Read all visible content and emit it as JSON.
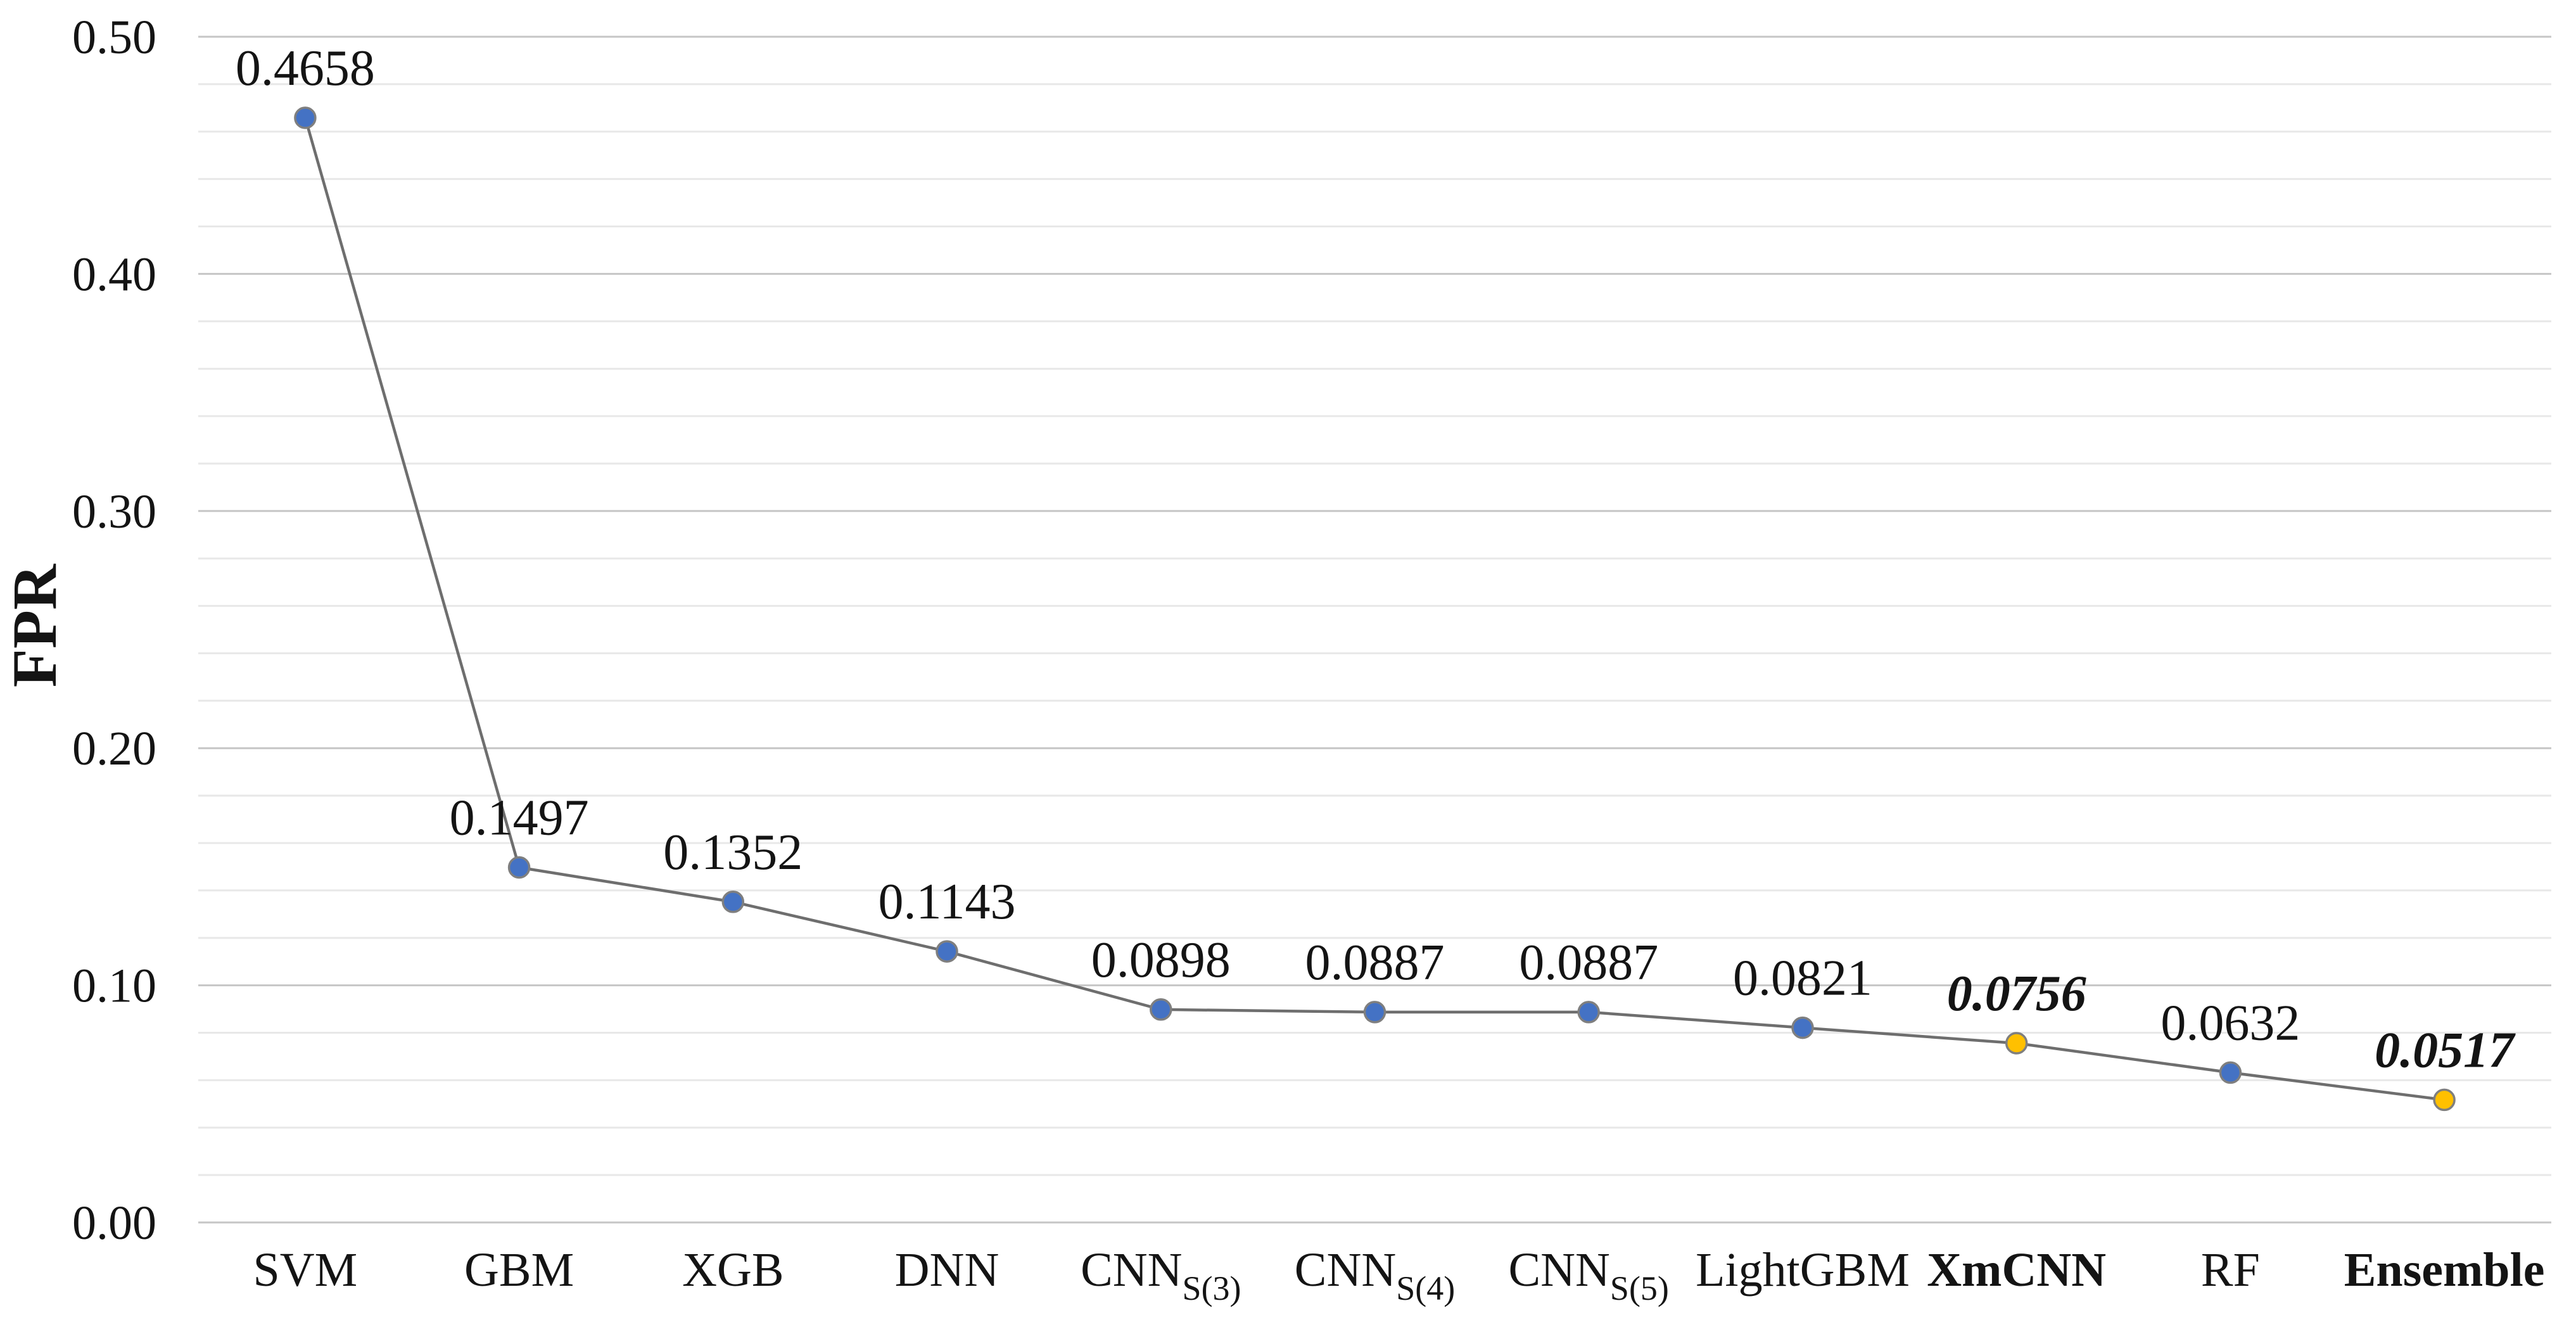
{
  "chart_data": {
    "type": "line",
    "title": "",
    "ylabel": "FPR",
    "xlabel": "",
    "legend_position": "none",
    "grid": true,
    "ylim": [
      0,
      0.5
    ],
    "ytick_step": 0.1,
    "minor_gridline_step": 0.02,
    "yticks": [
      {
        "value": 0.5,
        "label": "0.50"
      },
      {
        "value": 0.4,
        "label": "0.40"
      },
      {
        "value": 0.3,
        "label": "0.30"
      },
      {
        "value": 0.2,
        "label": "0.20"
      },
      {
        "value": 0.1,
        "label": "0.10"
      },
      {
        "value": 0.0,
        "label": "0.00"
      }
    ],
    "categories": [
      {
        "label": "SVM",
        "sub": "",
        "bold": false
      },
      {
        "label": "GBM",
        "sub": "",
        "bold": false
      },
      {
        "label": "XGB",
        "sub": "",
        "bold": false
      },
      {
        "label": "DNN",
        "sub": "",
        "bold": false
      },
      {
        "label": "CNN",
        "sub": "S(3)",
        "bold": false
      },
      {
        "label": "CNN",
        "sub": "S(4)",
        "bold": false
      },
      {
        "label": "CNN",
        "sub": "S(5)",
        "bold": false
      },
      {
        "label": "LightGBM",
        "sub": "",
        "bold": false
      },
      {
        "label": "XmCNN",
        "sub": "",
        "bold": true
      },
      {
        "label": "RF",
        "sub": "",
        "bold": false
      },
      {
        "label": "Ensemble",
        "sub": "",
        "bold": true
      }
    ],
    "series": [
      {
        "name": "FPR",
        "values": [
          0.4658,
          0.1497,
          0.1352,
          0.1143,
          0.0898,
          0.0887,
          0.0887,
          0.0821,
          0.0756,
          0.0632,
          0.0517
        ],
        "labels": [
          "0.4658",
          "0.1497",
          "0.1352",
          "0.1143",
          "0.0898",
          "0.0887",
          "0.0887",
          "0.0821",
          "0.0756",
          "0.0632",
          "0.0517"
        ]
      }
    ],
    "highlight_indices": [
      8,
      10
    ],
    "colors": {
      "point_default": "#4472C4",
      "point_highlight": "#FFC000",
      "point_stroke": "#7F7F7F",
      "line": "#6E6E6E",
      "gridline_major": "#C6C6C6",
      "gridline_minor": "#E8E8E8",
      "text": "#141414"
    }
  }
}
